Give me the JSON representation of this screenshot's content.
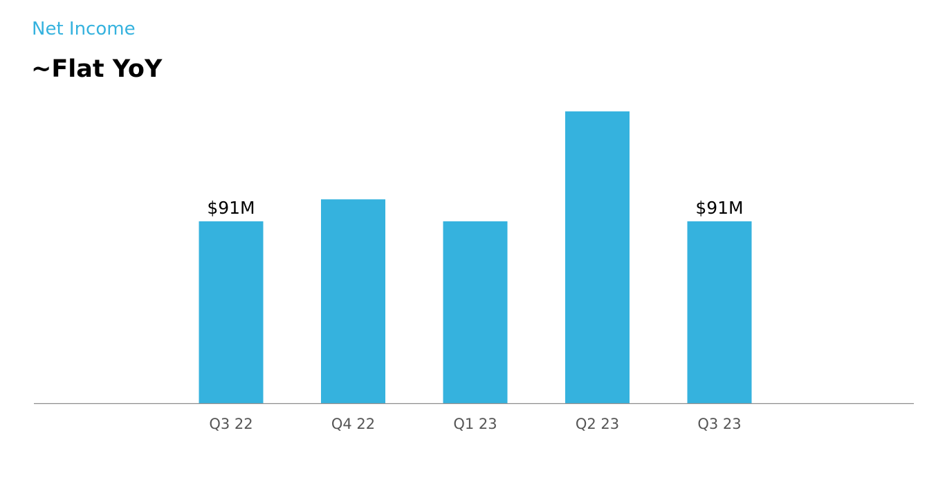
{
  "header": {
    "eyebrow": "Net Income",
    "title": "~Flat YoY"
  },
  "colors": {
    "accent": "#35b2de",
    "bar": "#35b2de",
    "axis": "#8c8c8c",
    "tick_text": "#555555",
    "label_text": "#000000"
  },
  "chart_data": {
    "type": "bar",
    "title": "",
    "xlabel": "",
    "ylabel": "",
    "categories": [
      "Q3 22",
      "Q4 22",
      "Q1 23",
      "Q2 23",
      "Q3 23"
    ],
    "values": [
      91,
      102,
      91,
      146,
      91
    ],
    "data_labels": [
      "$91M",
      "",
      "",
      "",
      "$91M"
    ],
    "ylim": [
      0,
      200
    ],
    "grid": false,
    "legend": "none",
    "y_axis_visible": false
  }
}
